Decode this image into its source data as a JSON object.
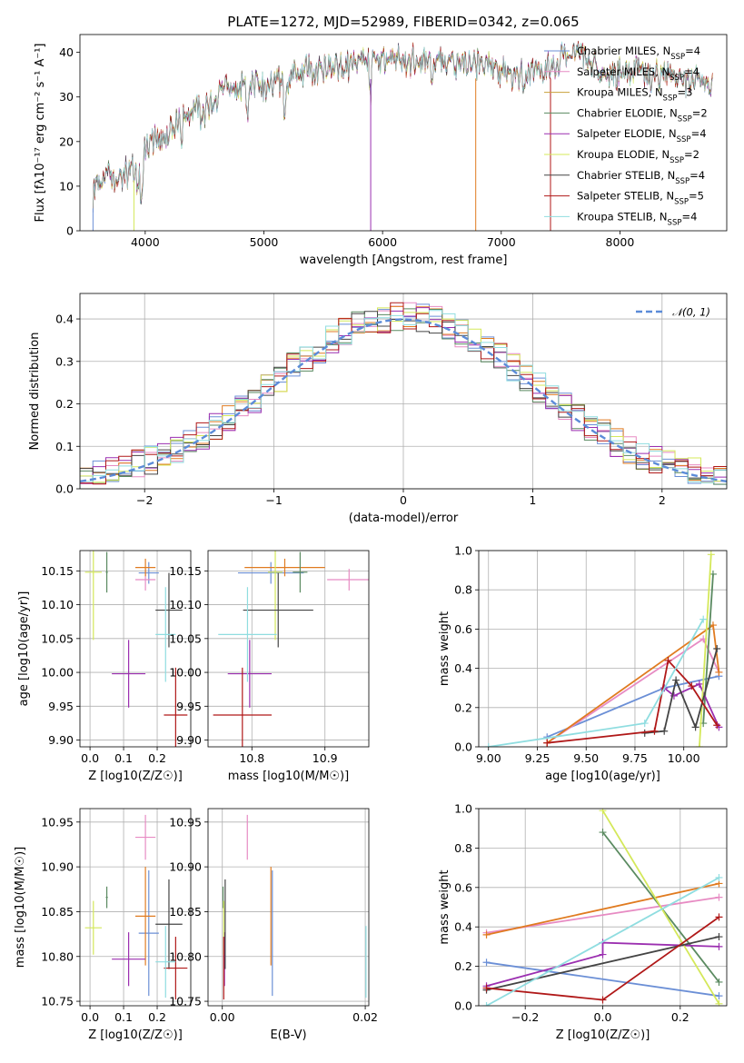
{
  "chart_data": [
    {
      "type": "line",
      "title": "PLATE=1272, MJD=52989, FIBERID=0342, z=0.065",
      "xlabel": "wavelength [Angstrom, rest frame]",
      "ylabel": "Flux [fλ10⁻¹⁷ erg cm⁻² s⁻¹ A⁻¹]",
      "xlim": [
        3450,
        8900
      ],
      "ylim": [
        0,
        44
      ],
      "xticks": [
        4000,
        5000,
        6000,
        7000,
        8000
      ],
      "yticks": [
        0,
        10,
        20,
        30,
        40
      ],
      "grid": false,
      "legend_position": "top-right",
      "spectrum_anchors": {
        "x": [
          3560,
          3600,
          3700,
          3800,
          3900,
          3950,
          4000,
          4100,
          4200,
          4300,
          4400,
          4500,
          4600,
          4700,
          4800,
          4900,
          5000,
          5100,
          5200,
          5300,
          5400,
          5500,
          5600,
          5700,
          5800,
          5900,
          6000,
          6100,
          6200,
          6300,
          6400,
          6500,
          6600,
          6700,
          6800,
          6900,
          7000,
          7100,
          7200,
          7300,
          7400,
          7500,
          7600,
          7700,
          7800,
          7900,
          8000,
          8100,
          8200,
          8300,
          8400,
          8500,
          8600,
          8700,
          8780
        ],
        "y": [
          8,
          11,
          13,
          12,
          14,
          17,
          20,
          21,
          22,
          25,
          27,
          27,
          30,
          31,
          32,
          33,
          32,
          33,
          34,
          36,
          36,
          36,
          37,
          37,
          38,
          37,
          38,
          39,
          38,
          38,
          37,
          37,
          38,
          38,
          37,
          37,
          36,
          35,
          35,
          36,
          37,
          38,
          40,
          39,
          36,
          35,
          35,
          36,
          35,
          34,
          35,
          34,
          34,
          33,
          32
        ]
      },
      "series": [
        {
          "name": "Chabrier MILES, N_SSP=4",
          "label": "Chabrier MILES, N",
          "sub": "SSP",
          "n": "4",
          "color": "#6b8fd6"
        },
        {
          "name": "Salpeter MILES, N_SSP=4",
          "label": "Salpeter MILES, N",
          "sub": "SSP",
          "n": "4",
          "color": "#e78bc3"
        },
        {
          "name": "Kroupa MILES, N_SSP=3",
          "label": "Kroupa MILES, N",
          "sub": "SSP",
          "n": "3",
          "color": "#c8a13a"
        },
        {
          "name": "Chabrier ELODIE, N_SSP=2",
          "label": "Chabrier ELODIE, N",
          "sub": "SSP",
          "n": "2",
          "color": "#5a8a60"
        },
        {
          "name": "Salpeter ELODIE, N_SSP=4",
          "label": "Salpeter ELODIE, N",
          "sub": "SSP",
          "n": "4",
          "color": "#9b2fb0"
        },
        {
          "name": "Kroupa ELODIE, N_SSP=2",
          "label": "Kroupa ELODIE, N",
          "sub": "SSP",
          "n": "2",
          "color": "#d4e85a"
        },
        {
          "name": "Chabrier STELIB, N_SSP=4",
          "label": "Chabrier STELIB, N",
          "sub": "SSP",
          "n": "4",
          "color": "#444444"
        },
        {
          "name": "Salpeter STELIB, N_SSP=5",
          "label": "Salpeter STELIB, N",
          "sub": "SSP",
          "n": "5",
          "color": "#b01818"
        },
        {
          "name": "Kroupa STELIB, N_SSP=4",
          "label": "Kroupa STELIB, N",
          "sub": "SSP",
          "n": "4",
          "color": "#8fdde0"
        }
      ]
    },
    {
      "type": "histogram",
      "xlabel": "(data-model)/error",
      "ylabel": "Normed distribution",
      "xlim": [
        -2.5,
        2.5
      ],
      "ylim": [
        0,
        0.46
      ],
      "xticks": [
        -2,
        -1,
        0,
        1,
        2
      ],
      "yticks": [
        0.0,
        0.1,
        0.2,
        0.3,
        0.4
      ],
      "grid": true,
      "legend_position": "top-right",
      "legend": "𝒩(0, 1)",
      "bin_width": 0.1,
      "series_colors": [
        "#6b8fd6",
        "#e78bc3",
        "#e07b20",
        "#5a8a60",
        "#9b2fb0",
        "#d4e85a",
        "#444444",
        "#b01818",
        "#8fdde0"
      ],
      "reference_curve": {
        "name": "𝒩(0, 1)",
        "mean": 0,
        "sigma": 1,
        "color": "#5b8bd8"
      }
    },
    {
      "type": "scatter",
      "xlabel": "Z [log10(Z/Z☉)]",
      "ylabel": "age [log10(age/yr)]",
      "xlim": [
        -0.03,
        0.3
      ],
      "ylim": [
        9.89,
        10.18
      ],
      "xticks": [
        0.0,
        0.1,
        0.2
      ],
      "yticks": [
        9.9,
        9.95,
        10.0,
        10.05,
        10.1,
        10.15
      ],
      "points": [
        {
          "x": 0.175,
          "y": 10.147,
          "ex": 0.03,
          "ey": 0.016,
          "color": "#6b8fd6"
        },
        {
          "x": 0.165,
          "y": 10.137,
          "ex": 0.03,
          "ey": 0.016,
          "color": "#e78bc3"
        },
        {
          "x": 0.165,
          "y": 10.155,
          "ex": 0.03,
          "ey": 0.013,
          "color": "#e07b20"
        },
        {
          "x": 0.05,
          "y": 10.148,
          "ex": 0.003,
          "ey": 0.03,
          "color": "#5a8a60"
        },
        {
          "x": 0.115,
          "y": 9.998,
          "ex": 0.05,
          "ey": 0.05,
          "color": "#9b2fb0"
        },
        {
          "x": 0.01,
          "y": 10.148,
          "ex": 0.025,
          "ey": 0.1,
          "color": "#d4e85a"
        },
        {
          "x": 0.235,
          "y": 10.092,
          "ex": 0.04,
          "ey": 0.055,
          "color": "#444444"
        },
        {
          "x": 0.255,
          "y": 9.937,
          "ex": 0.035,
          "ey": 0.07,
          "color": "#b01818"
        },
        {
          "x": 0.225,
          "y": 10.056,
          "ex": 0.03,
          "ey": 0.07,
          "color": "#8fdde0"
        }
      ]
    },
    {
      "type": "scatter",
      "xlabel": "mass [log10(M/M☉)]",
      "xlim": [
        10.74,
        10.96
      ],
      "ylim": [
        9.89,
        10.18
      ],
      "xticks": [
        10.8,
        10.9
      ],
      "yticks": [
        9.9,
        9.95,
        10.0,
        10.05,
        10.1,
        10.15
      ],
      "points": [
        {
          "x": 10.826,
          "y": 10.147,
          "ex": 0.045,
          "ey": 0.016,
          "color": "#6b8fd6"
        },
        {
          "x": 10.933,
          "y": 10.137,
          "ex": 0.03,
          "ey": 0.016,
          "color": "#e78bc3"
        },
        {
          "x": 10.845,
          "y": 10.155,
          "ex": 0.055,
          "ey": 0.013,
          "color": "#e07b20"
        },
        {
          "x": 10.866,
          "y": 10.148,
          "ex": 0.01,
          "ey": 0.03,
          "color": "#5a8a60"
        },
        {
          "x": 10.797,
          "y": 9.998,
          "ex": 0.03,
          "ey": 0.05,
          "color": "#9b2fb0"
        },
        {
          "x": 10.832,
          "y": 10.148,
          "ex": 0.01,
          "ey": 0.1,
          "color": "#d4e85a"
        },
        {
          "x": 10.836,
          "y": 10.092,
          "ex": 0.048,
          "ey": 0.055,
          "color": "#444444"
        },
        {
          "x": 10.787,
          "y": 9.937,
          "ex": 0.04,
          "ey": 0.07,
          "color": "#b01818"
        },
        {
          "x": 10.794,
          "y": 10.056,
          "ex": 0.04,
          "ey": 0.07,
          "color": "#8fdde0"
        }
      ]
    },
    {
      "type": "line",
      "xlabel": "age [log10(age/yr)]",
      "ylabel": "mass weight",
      "xlim": [
        8.95,
        10.22
      ],
      "ylim": [
        0,
        1.0
      ],
      "xticks": [
        9.0,
        9.25,
        9.5,
        9.75,
        10.0
      ],
      "yticks": [
        0.0,
        0.2,
        0.4,
        0.6,
        0.8,
        1.0
      ],
      "grid": true,
      "series": [
        {
          "color": "#6b8fd6",
          "x": [
            9.3,
            9.9,
            10.18
          ],
          "y": [
            0.05,
            0.3,
            0.36
          ]
        },
        {
          "color": "#e78bc3",
          "x": [
            9.3,
            10.1,
            10.18
          ],
          "y": [
            0.02,
            0.55,
            0.38
          ]
        },
        {
          "color": "#e07b20",
          "x": [
            9.3,
            10.15,
            10.18
          ],
          "y": [
            0.02,
            0.62,
            0.38
          ]
        },
        {
          "color": "#5a8a60",
          "x": [
            10.1,
            10.15
          ],
          "y": [
            0.12,
            0.88
          ]
        },
        {
          "color": "#9b2fb0",
          "x": [
            9.9,
            9.95,
            10.08,
            10.18
          ],
          "y": [
            0.3,
            0.26,
            0.32,
            0.1
          ]
        },
        {
          "color": "#d4e85a",
          "x": [
            10.08,
            10.14
          ],
          "y": [
            0.0,
            0.98
          ]
        },
        {
          "color": "#444444",
          "x": [
            9.8,
            9.9,
            9.96,
            10.06,
            10.17
          ],
          "y": [
            0.07,
            0.08,
            0.34,
            0.1,
            0.5
          ]
        },
        {
          "color": "#b01818",
          "x": [
            9.3,
            9.85,
            9.92,
            10.04,
            10.17
          ],
          "y": [
            0.02,
            0.08,
            0.44,
            0.31,
            0.11
          ]
        },
        {
          "color": "#8fdde0",
          "x": [
            9.0,
            9.8,
            10.1
          ],
          "y": [
            0.0,
            0.12,
            0.65
          ]
        }
      ]
    },
    {
      "type": "scatter",
      "xlabel": "Z [log10(Z/Z☉)]",
      "ylabel": "mass [log10(M/M☉)]",
      "xlim": [
        -0.03,
        0.3
      ],
      "ylim": [
        10.745,
        10.965
      ],
      "xticks": [
        0.0,
        0.1,
        0.2
      ],
      "yticks": [
        10.75,
        10.8,
        10.85,
        10.9,
        10.95
      ],
      "points": [
        {
          "x": 0.175,
          "y": 10.826,
          "ex": 0.03,
          "ey": 0.07,
          "color": "#6b8fd6"
        },
        {
          "x": 0.165,
          "y": 10.933,
          "ex": 0.03,
          "ey": 0.025,
          "color": "#e78bc3"
        },
        {
          "x": 0.165,
          "y": 10.845,
          "ex": 0.03,
          "ey": 0.055,
          "color": "#e07b20"
        },
        {
          "x": 0.05,
          "y": 10.866,
          "ex": 0.003,
          "ey": 0.012,
          "color": "#5a8a60"
        },
        {
          "x": 0.115,
          "y": 10.797,
          "ex": 0.05,
          "ey": 0.03,
          "color": "#9b2fb0"
        },
        {
          "x": 0.01,
          "y": 10.832,
          "ex": 0.025,
          "ey": 0.03,
          "color": "#d4e85a"
        },
        {
          "x": 0.235,
          "y": 10.836,
          "ex": 0.04,
          "ey": 0.05,
          "color": "#444444"
        },
        {
          "x": 0.255,
          "y": 10.787,
          "ex": 0.035,
          "ey": 0.035,
          "color": "#b01818"
        },
        {
          "x": 0.225,
          "y": 10.794,
          "ex": 0.03,
          "ey": 0.04,
          "color": "#8fdde0"
        }
      ]
    },
    {
      "type": "scatter",
      "xlabel": "E(B-V)",
      "xlim": [
        -0.002,
        0.0205
      ],
      "ylim": [
        10.745,
        10.965
      ],
      "xticks": [
        0.0,
        0.02
      ],
      "yticks": [
        10.75,
        10.8,
        10.85,
        10.9,
        10.95
      ],
      "points": [
        {
          "x": 0.007,
          "y": 10.826,
          "ex": 0.0,
          "ey": 0.07,
          "color": "#6b8fd6"
        },
        {
          "x": 0.0035,
          "y": 10.933,
          "ex": 0.0,
          "ey": 0.025,
          "color": "#e78bc3"
        },
        {
          "x": 0.0068,
          "y": 10.845,
          "ex": 0.0,
          "ey": 0.055,
          "color": "#e07b20"
        },
        {
          "x": 0.0001,
          "y": 10.866,
          "ex": 0.0,
          "ey": 0.012,
          "color": "#5a8a60"
        },
        {
          "x": 0.0003,
          "y": 10.797,
          "ex": 0.0,
          "ey": 0.03,
          "color": "#9b2fb0"
        },
        {
          "x": 0.0002,
          "y": 10.832,
          "ex": 0.0,
          "ey": 0.03,
          "color": "#d4e85a"
        },
        {
          "x": 0.0004,
          "y": 10.836,
          "ex": 0.0,
          "ey": 0.05,
          "color": "#444444"
        },
        {
          "x": 0.0002,
          "y": 10.787,
          "ex": 0.0,
          "ey": 0.035,
          "color": "#b01818"
        },
        {
          "x": 0.0201,
          "y": 10.794,
          "ex": 0.0,
          "ey": 0.04,
          "color": "#8fdde0"
        }
      ]
    },
    {
      "type": "line",
      "xlabel": "Z [log10(Z/Z☉)]",
      "ylabel": "mass weight",
      "xlim": [
        -0.32,
        0.32
      ],
      "ylim": [
        0,
        1.0
      ],
      "xticks": [
        -0.2,
        0.0,
        0.2
      ],
      "yticks": [
        0.0,
        0.2,
        0.4,
        0.6,
        0.8,
        1.0
      ],
      "grid": true,
      "series": [
        {
          "color": "#6b8fd6",
          "x": [
            -0.3,
            0.3
          ],
          "y": [
            0.22,
            0.05
          ]
        },
        {
          "color": "#e78bc3",
          "x": [
            -0.3,
            0.3
          ],
          "y": [
            0.37,
            0.55
          ]
        },
        {
          "color": "#e07b20",
          "x": [
            -0.3,
            0.3
          ],
          "y": [
            0.36,
            0.62
          ]
        },
        {
          "color": "#5a8a60",
          "x": [
            0.0,
            0.3
          ],
          "y": [
            0.88,
            0.12
          ]
        },
        {
          "color": "#9b2fb0",
          "x": [
            -0.3,
            0.0,
            0.0,
            0.3
          ],
          "y": [
            0.1,
            0.26,
            0.32,
            0.3
          ]
        },
        {
          "color": "#d4e85a",
          "x": [
            0.0,
            0.3
          ],
          "y": [
            0.99,
            0.01
          ]
        },
        {
          "color": "#444444",
          "x": [
            -0.3,
            0.3
          ],
          "y": [
            0.08,
            0.35
          ]
        },
        {
          "color": "#b01818",
          "x": [
            -0.3,
            0.0,
            0.3
          ],
          "y": [
            0.09,
            0.03,
            0.45
          ]
        },
        {
          "color": "#8fdde0",
          "x": [
            -0.3,
            0.3
          ],
          "y": [
            0.0,
            0.65
          ]
        }
      ]
    }
  ]
}
